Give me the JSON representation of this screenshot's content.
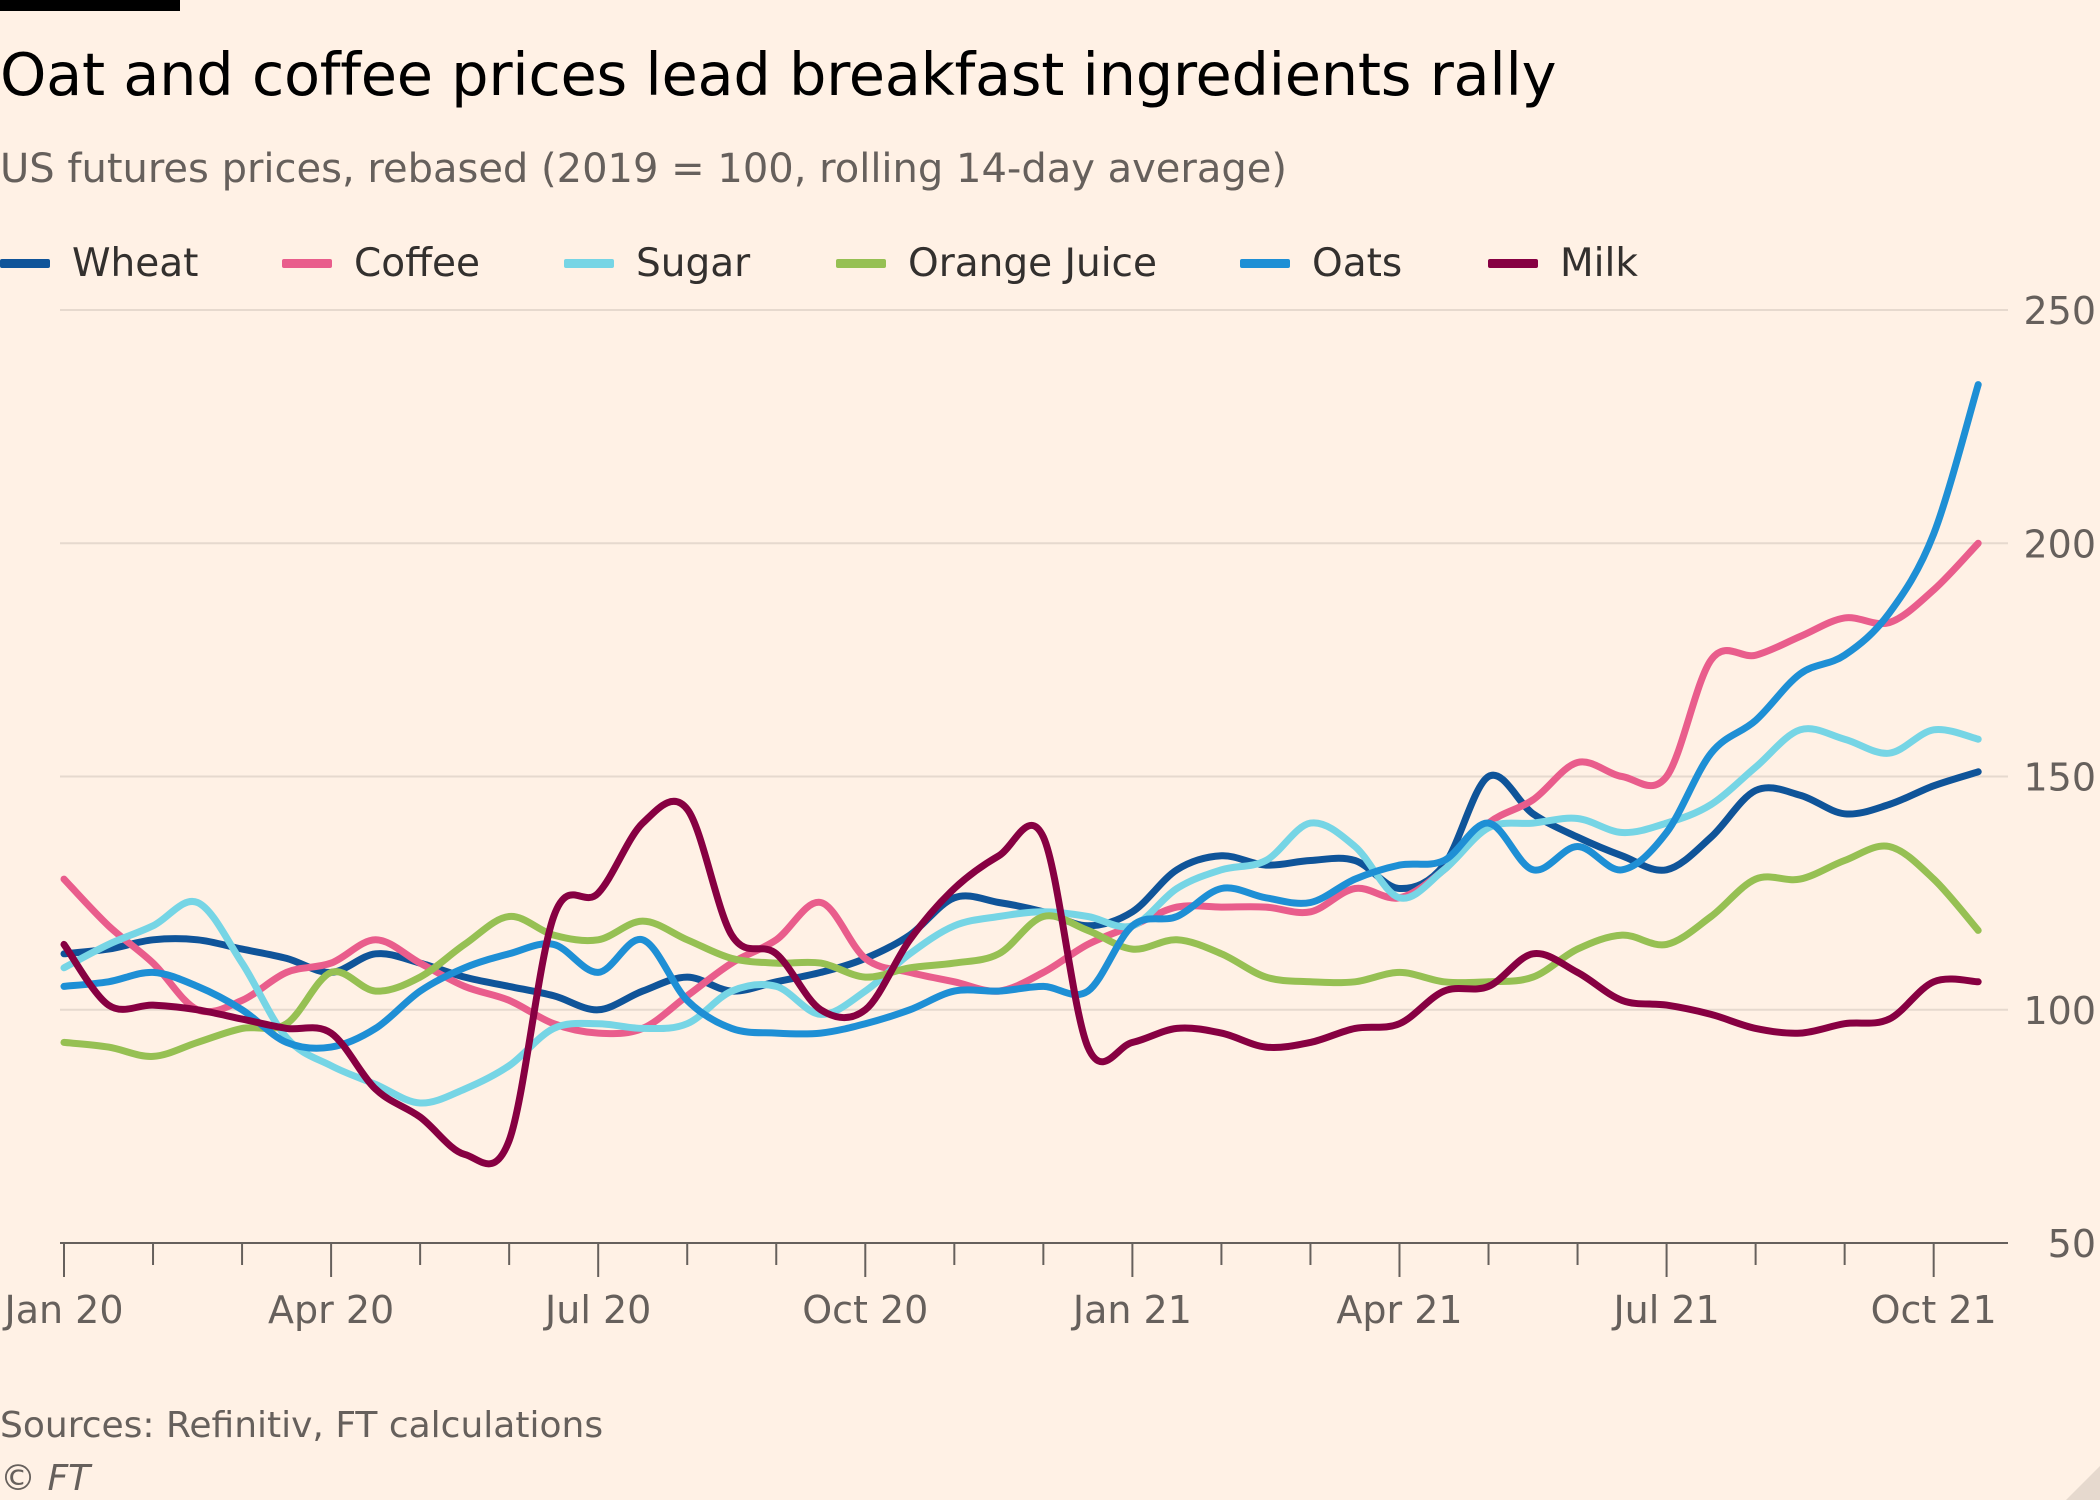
{
  "title": "Oat and coffee prices lead breakfast ingredients rally",
  "subtitle": "US futures prices, rebased (2019 = 100, rolling 14-day average)",
  "source": "Sources: Refinitiv, FT calculations",
  "copyright": "© FT",
  "chart_data": {
    "type": "line",
    "title": "Oat and coffee prices lead breakfast ingredients rally",
    "subtitle": "US futures prices, rebased (2019 = 100, rolling 14-day average)",
    "xlabel": "",
    "ylabel": "",
    "x_unit": "month index (0 = Jan 2020)",
    "xlim": [
      0,
      21.7
    ],
    "ylim": [
      50,
      250
    ],
    "yticks": [
      50,
      100,
      150,
      200,
      250
    ],
    "gridlines_y": [
      100,
      150,
      200,
      250
    ],
    "xtick_labels": [
      {
        "x": 0,
        "label": "Jan 20"
      },
      {
        "x": 3,
        "label": "Apr 20"
      },
      {
        "x": 6,
        "label": "Jul 20"
      },
      {
        "x": 9,
        "label": "Oct 20"
      },
      {
        "x": 12,
        "label": "Jan 21"
      },
      {
        "x": 15,
        "label": "Apr 21"
      },
      {
        "x": 18,
        "label": "Jul 21"
      },
      {
        "x": 21,
        "label": "Oct 21"
      }
    ],
    "legend_position": "top",
    "series": [
      {
        "name": "Wheat",
        "color": "#0f5499",
        "points": [
          [
            0,
            112
          ],
          [
            0.5,
            113
          ],
          [
            1,
            115
          ],
          [
            1.5,
            115
          ],
          [
            2,
            113
          ],
          [
            2.5,
            111
          ],
          [
            3,
            108
          ],
          [
            3.5,
            112
          ],
          [
            4,
            110
          ],
          [
            4.5,
            107
          ],
          [
            5,
            105
          ],
          [
            5.5,
            103
          ],
          [
            6,
            100
          ],
          [
            6.5,
            104
          ],
          [
            7,
            107
          ],
          [
            7.5,
            104
          ],
          [
            8,
            106
          ],
          [
            8.5,
            108
          ],
          [
            9,
            111
          ],
          [
            9.5,
            116
          ],
          [
            10,
            124
          ],
          [
            10.5,
            123
          ],
          [
            11,
            121
          ],
          [
            11.5,
            118
          ],
          [
            12,
            121
          ],
          [
            12.5,
            130
          ],
          [
            13,
            133
          ],
          [
            13.5,
            131
          ],
          [
            14,
            132
          ],
          [
            14.5,
            132
          ],
          [
            15,
            126
          ],
          [
            15.5,
            131
          ],
          [
            16,
            150
          ],
          [
            16.5,
            142
          ],
          [
            17,
            137
          ],
          [
            17.5,
            133
          ],
          [
            18,
            130
          ],
          [
            18.5,
            137
          ],
          [
            19,
            147
          ],
          [
            19.5,
            146
          ],
          [
            20,
            142
          ],
          [
            20.5,
            144
          ],
          [
            21,
            148
          ],
          [
            21.5,
            151
          ]
        ]
      },
      {
        "name": "Coffee",
        "color": "#e95d8c",
        "points": [
          [
            0,
            128
          ],
          [
            0.5,
            118
          ],
          [
            1,
            110
          ],
          [
            1.5,
            100
          ],
          [
            2,
            102
          ],
          [
            2.5,
            108
          ],
          [
            3,
            110
          ],
          [
            3.5,
            115
          ],
          [
            4,
            110
          ],
          [
            4.5,
            105
          ],
          [
            5,
            102
          ],
          [
            5.5,
            97
          ],
          [
            6,
            95
          ],
          [
            6.5,
            96
          ],
          [
            7,
            103
          ],
          [
            7.5,
            110
          ],
          [
            8,
            115
          ],
          [
            8.5,
            123
          ],
          [
            9,
            111
          ],
          [
            9.5,
            108
          ],
          [
            10,
            106
          ],
          [
            10.5,
            104
          ],
          [
            11,
            108
          ],
          [
            11.5,
            114
          ],
          [
            12,
            118
          ],
          [
            12.5,
            122
          ],
          [
            13,
            122
          ],
          [
            13.5,
            122
          ],
          [
            14,
            121
          ],
          [
            14.5,
            126
          ],
          [
            15,
            124
          ],
          [
            15.5,
            130
          ],
          [
            16,
            140
          ],
          [
            16.5,
            145
          ],
          [
            17,
            153
          ],
          [
            17.5,
            150
          ],
          [
            18,
            150
          ],
          [
            18.5,
            175
          ],
          [
            19,
            176
          ],
          [
            19.5,
            180
          ],
          [
            20,
            184
          ],
          [
            20.5,
            183
          ],
          [
            21,
            190
          ],
          [
            21.5,
            200
          ]
        ]
      },
      {
        "name": "Sugar",
        "color": "#76d5e5",
        "points": [
          [
            0,
            109
          ],
          [
            0.5,
            114
          ],
          [
            1,
            118
          ],
          [
            1.5,
            123
          ],
          [
            2,
            110
          ],
          [
            2.5,
            94
          ],
          [
            3,
            88
          ],
          [
            3.5,
            84
          ],
          [
            4,
            80
          ],
          [
            4.5,
            83
          ],
          [
            5,
            88
          ],
          [
            5.5,
            96
          ],
          [
            6,
            97
          ],
          [
            6.5,
            96
          ],
          [
            7,
            97
          ],
          [
            7.5,
            104
          ],
          [
            8,
            105
          ],
          [
            8.5,
            99
          ],
          [
            9,
            104
          ],
          [
            9.5,
            112
          ],
          [
            10,
            118
          ],
          [
            10.5,
            120
          ],
          [
            11,
            121
          ],
          [
            11.5,
            120
          ],
          [
            12,
            118
          ],
          [
            12.5,
            126
          ],
          [
            13,
            130
          ],
          [
            13.5,
            132
          ],
          [
            14,
            140
          ],
          [
            14.5,
            135
          ],
          [
            15,
            124
          ],
          [
            15.5,
            130
          ],
          [
            16,
            139
          ],
          [
            16.5,
            140
          ],
          [
            17,
            141
          ],
          [
            17.5,
            138
          ],
          [
            18,
            140
          ],
          [
            18.5,
            144
          ],
          [
            19,
            152
          ],
          [
            19.5,
            160
          ],
          [
            20,
            158
          ],
          [
            20.5,
            155
          ],
          [
            21,
            160
          ],
          [
            21.5,
            158
          ]
        ]
      },
      {
        "name": "Orange Juice",
        "color": "#96c053",
        "points": [
          [
            0,
            93
          ],
          [
            0.5,
            92
          ],
          [
            1,
            90
          ],
          [
            1.5,
            93
          ],
          [
            2,
            96
          ],
          [
            2.5,
            97
          ],
          [
            3,
            108
          ],
          [
            3.5,
            104
          ],
          [
            4,
            107
          ],
          [
            4.5,
            114
          ],
          [
            5,
            120
          ],
          [
            5.5,
            116
          ],
          [
            6,
            115
          ],
          [
            6.5,
            119
          ],
          [
            7,
            115
          ],
          [
            7.5,
            111
          ],
          [
            8,
            110
          ],
          [
            8.5,
            110
          ],
          [
            9,
            107
          ],
          [
            9.5,
            109
          ],
          [
            10,
            110
          ],
          [
            10.5,
            112
          ],
          [
            11,
            120
          ],
          [
            11.5,
            117
          ],
          [
            12,
            113
          ],
          [
            12.5,
            115
          ],
          [
            13,
            112
          ],
          [
            13.5,
            107
          ],
          [
            14,
            106
          ],
          [
            14.5,
            106
          ],
          [
            15,
            108
          ],
          [
            15.5,
            106
          ],
          [
            16,
            106
          ],
          [
            16.5,
            107
          ],
          [
            17,
            113
          ],
          [
            17.5,
            116
          ],
          [
            18,
            114
          ],
          [
            18.5,
            120
          ],
          [
            19,
            128
          ],
          [
            19.5,
            128
          ],
          [
            20,
            132
          ],
          [
            20.5,
            135
          ],
          [
            21,
            128
          ],
          [
            21.5,
            117
          ]
        ]
      },
      {
        "name": "Oats",
        "color": "#1e8fd5",
        "points": [
          [
            0,
            105
          ],
          [
            0.5,
            106
          ],
          [
            1,
            108
          ],
          [
            1.5,
            105
          ],
          [
            2,
            100
          ],
          [
            2.5,
            93
          ],
          [
            3,
            92
          ],
          [
            3.5,
            96
          ],
          [
            4,
            104
          ],
          [
            4.5,
            109
          ],
          [
            5,
            112
          ],
          [
            5.5,
            114
          ],
          [
            6,
            108
          ],
          [
            6.5,
            115
          ],
          [
            7,
            102
          ],
          [
            7.5,
            96
          ],
          [
            8,
            95
          ],
          [
            8.5,
            95
          ],
          [
            9,
            97
          ],
          [
            9.5,
            100
          ],
          [
            10,
            104
          ],
          [
            10.5,
            104
          ],
          [
            11,
            105
          ],
          [
            11.5,
            104
          ],
          [
            12,
            118
          ],
          [
            12.5,
            120
          ],
          [
            13,
            126
          ],
          [
            13.5,
            124
          ],
          [
            14,
            123
          ],
          [
            14.5,
            128
          ],
          [
            15,
            131
          ],
          [
            15.5,
            132
          ],
          [
            16,
            140
          ],
          [
            16.5,
            130
          ],
          [
            17,
            135
          ],
          [
            17.5,
            130
          ],
          [
            18,
            138
          ],
          [
            18.5,
            155
          ],
          [
            19,
            162
          ],
          [
            19.5,
            172
          ],
          [
            20,
            176
          ],
          [
            20.5,
            185
          ],
          [
            21,
            202
          ],
          [
            21.5,
            234
          ]
        ]
      },
      {
        "name": "Milk",
        "color": "#870042",
        "points": [
          [
            0,
            114
          ],
          [
            0.5,
            101
          ],
          [
            1,
            101
          ],
          [
            1.5,
            100
          ],
          [
            2,
            98
          ],
          [
            2.5,
            96
          ],
          [
            3,
            95
          ],
          [
            3.5,
            83
          ],
          [
            4,
            77
          ],
          [
            4.5,
            69
          ],
          [
            5,
            72
          ],
          [
            5.5,
            120
          ],
          [
            6,
            125
          ],
          [
            6.5,
            140
          ],
          [
            7,
            143
          ],
          [
            7.5,
            116
          ],
          [
            8,
            112
          ],
          [
            8.5,
            100
          ],
          [
            9,
            100
          ],
          [
            9.5,
            115
          ],
          [
            10,
            126
          ],
          [
            10.5,
            133
          ],
          [
            11,
            137
          ],
          [
            11.5,
            92
          ],
          [
            12,
            93
          ],
          [
            12.5,
            96
          ],
          [
            13,
            95
          ],
          [
            13.5,
            92
          ],
          [
            14,
            93
          ],
          [
            14.5,
            96
          ],
          [
            15,
            97
          ],
          [
            15.5,
            104
          ],
          [
            16,
            105
          ],
          [
            16.5,
            112
          ],
          [
            17,
            108
          ],
          [
            17.5,
            102
          ],
          [
            18,
            101
          ],
          [
            18.5,
            99
          ],
          [
            19,
            96
          ],
          [
            19.5,
            95
          ],
          [
            20,
            97
          ],
          [
            20.5,
            98
          ],
          [
            21,
            106
          ],
          [
            21.5,
            106
          ]
        ]
      }
    ]
  }
}
